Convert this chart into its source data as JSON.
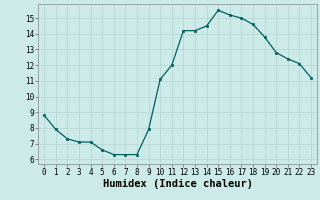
{
  "x": [
    0,
    1,
    2,
    3,
    4,
    5,
    6,
    7,
    8,
    9,
    10,
    11,
    12,
    13,
    14,
    15,
    16,
    17,
    18,
    19,
    20,
    21,
    22,
    23
  ],
  "y": [
    8.8,
    7.9,
    7.3,
    7.1,
    7.1,
    6.6,
    6.3,
    6.3,
    6.3,
    7.9,
    11.1,
    12.0,
    14.2,
    14.2,
    14.5,
    15.5,
    15.2,
    15.0,
    14.6,
    13.8,
    12.8,
    12.4,
    12.1,
    11.2
  ],
  "line_color": "#006060",
  "marker_color": "#006060",
  "bg_color": "#cceae8",
  "grid_color": "#b8d8d4",
  "xlabel": "Humidex (Indice chaleur)",
  "xlim": [
    -0.5,
    23.5
  ],
  "ylim": [
    5.7,
    15.9
  ],
  "yticks": [
    6,
    7,
    8,
    9,
    10,
    11,
    12,
    13,
    14,
    15
  ],
  "xticks": [
    0,
    1,
    2,
    3,
    4,
    5,
    6,
    7,
    8,
    9,
    10,
    11,
    12,
    13,
    14,
    15,
    16,
    17,
    18,
    19,
    20,
    21,
    22,
    23
  ],
  "tick_fontsize": 5.5,
  "xlabel_fontsize": 7.5,
  "xlabel_fontweight": "bold"
}
